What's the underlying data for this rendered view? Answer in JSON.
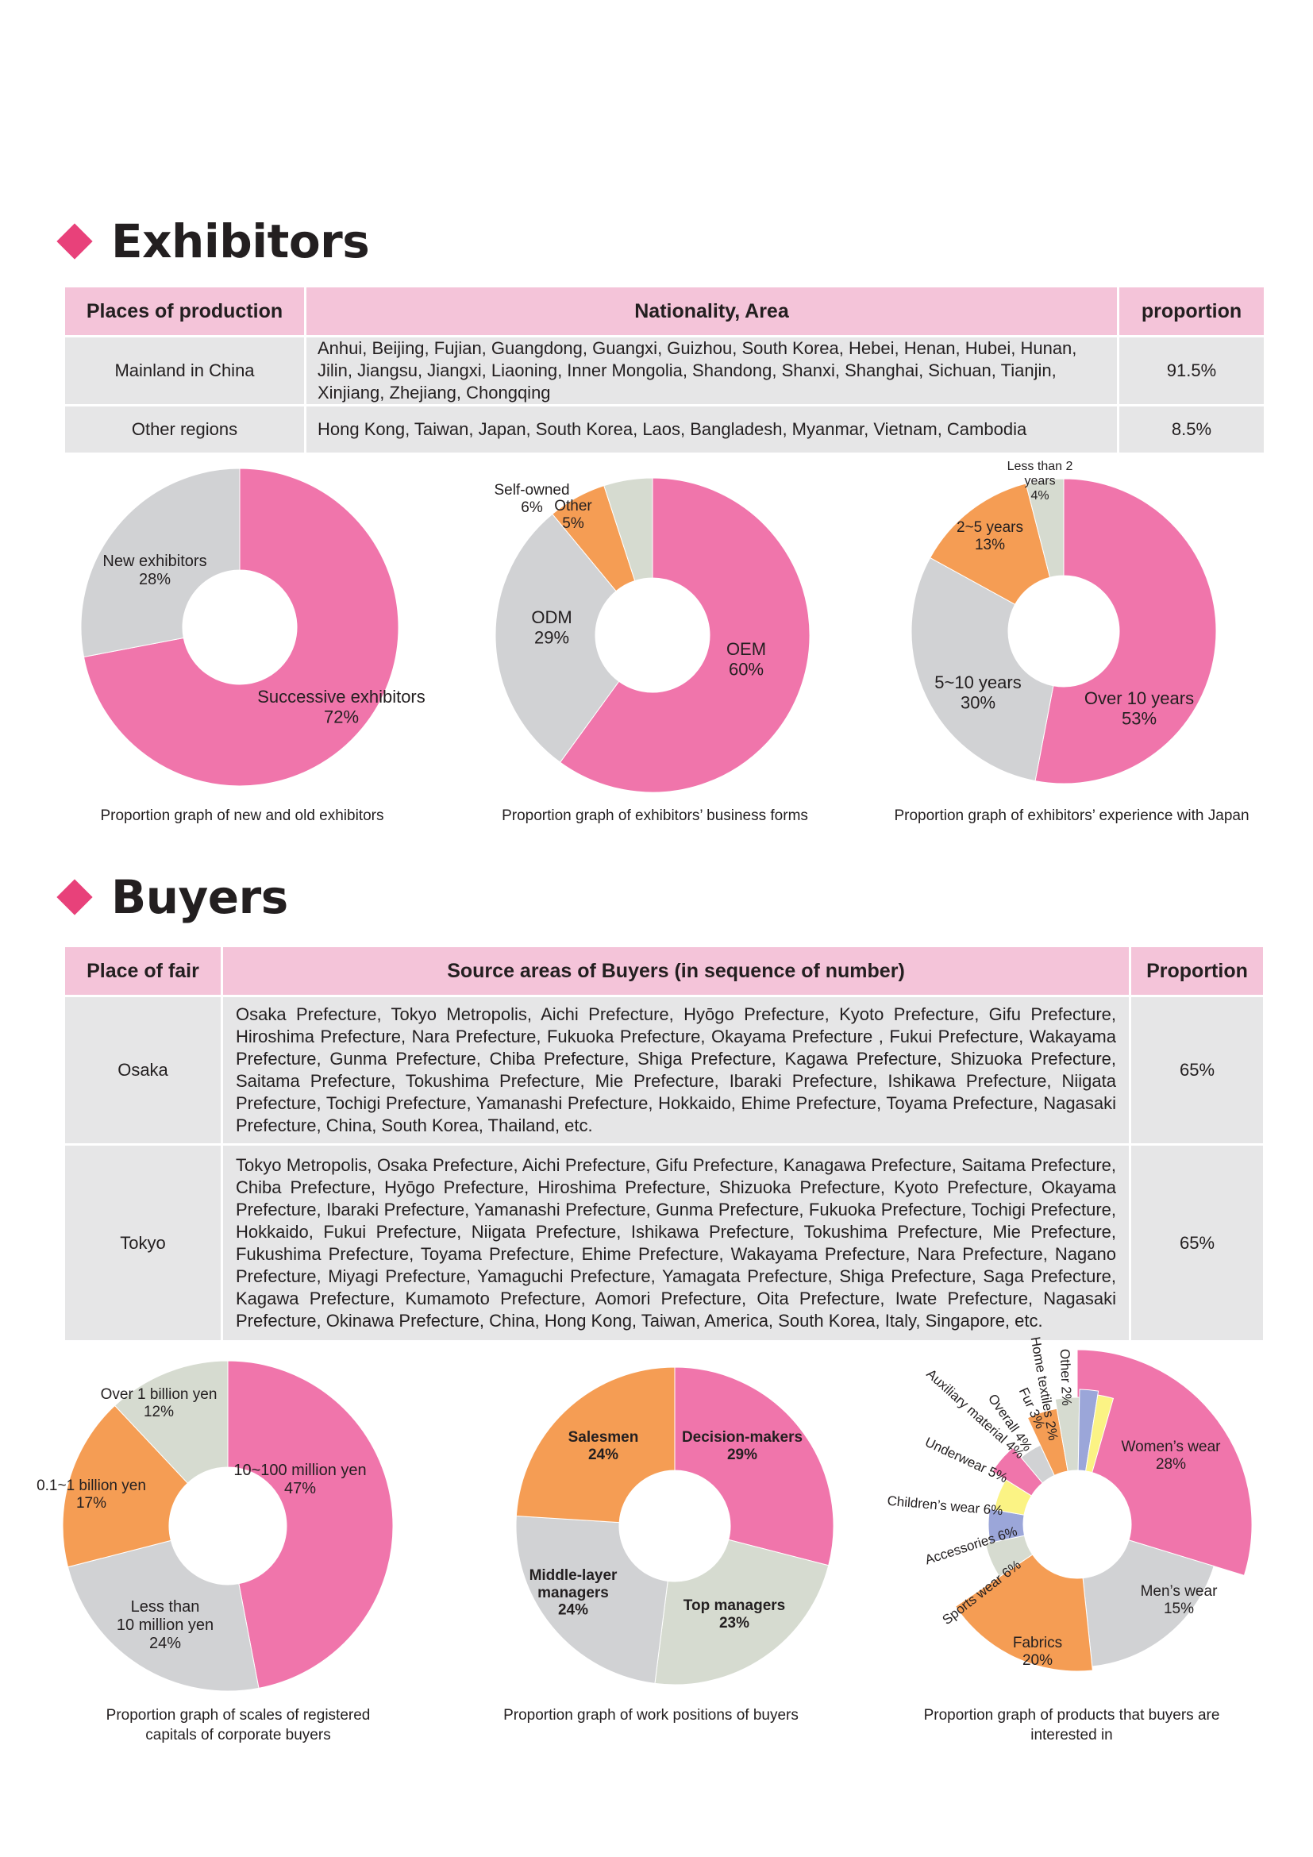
{
  "exhibitors": {
    "title": "Exhibitors",
    "table": {
      "headers": [
        "Places of production",
        "Nationality, Area",
        "proportion"
      ],
      "rows": [
        {
          "place": "Mainland in China",
          "areas": "Anhui, Beijing, Fujian, Guangdong, Guangxi, Guizhou, South Korea, Hebei, Henan, Hubei, Hunan, Jilin, Jiangsu, Jiangxi, Liaoning, Inner Mongolia, Shandong, Shanxi, Shanghai, Sichuan, Tianjin, Xinjiang, Zhejiang, Chongqing",
          "proportion": "91.5%"
        },
        {
          "place": "Other regions",
          "areas": "Hong Kong, Taiwan, Japan, South Korea, Laos, Bangladesh, Myanmar, Vietnam, Cambodia",
          "proportion": "8.5%"
        }
      ]
    }
  },
  "buyers": {
    "title": "Buyers",
    "table": {
      "headers": [
        "Place of fair",
        "Source areas of Buyers (in sequence of number)",
        "Proportion"
      ],
      "rows": [
        {
          "place": "Osaka",
          "areas": "Osaka Prefecture, Tokyo Metropolis, Aichi Prefecture, Hyōgo Prefecture, Kyoto Prefecture, Gifu Prefecture, Hiroshima Prefecture, Nara Prefecture, Fukuoka Prefecture, Okayama Prefecture , Fukui Prefecture, Wakayama Prefecture, Gunma Prefecture, Chiba Prefecture, Shiga Prefecture, Kagawa Prefecture, Shizuoka Prefecture, Saitama Prefecture, Tokushima Prefecture, Mie Prefecture, Ibaraki Prefecture, Ishikawa Prefecture, Niigata Prefecture, Tochigi Prefecture, Yamanashi Prefecture, Hokkaido, Ehime Prefecture, Toyama Prefecture, Nagasaki Prefecture, China, South Korea, Thailand, etc.",
          "proportion": "65%"
        },
        {
          "place": "Tokyo",
          "areas": "Tokyo Metropolis, Osaka Prefecture, Aichi Prefecture, Gifu Prefecture, Kanagawa Prefecture, Saitama Prefecture, Chiba Prefecture, Hyōgo Prefecture, Hiroshima Prefecture, Shizuoka Prefecture, Kyoto Prefecture, Okayama Prefecture, Ibaraki Prefecture, Yamanashi Prefecture, Gunma Prefecture, Fukuoka Prefecture, Tochigi Prefecture, Hokkaido, Fukui Prefecture, Niigata Prefecture, Ishikawa Prefecture, Tokushima Prefecture, Mie Prefecture, Fukushima Prefecture, Toyama Prefecture, Ehime Prefecture, Wakayama Prefecture, Nara Prefecture, Nagano Prefecture, Miyagi Prefecture, Yamaguchi Prefecture, Yamagata Prefecture, Shiga Prefecture, Saga Prefecture, Kagawa Prefecture, Kumamoto Prefecture, Aomori Prefecture, Oita Prefecture, Iwate Prefecture, Nagasaki Prefecture, Okinawa Prefecture, China, Hong Kong, Taiwan, America, South Korea, Italy, Singapore, etc.",
          "proportion": "65%"
        }
      ]
    }
  },
  "chart_data": [
    {
      "type": "pie",
      "donut": true,
      "title": "Proportion graph of new and old exhibitors",
      "slices": [
        {
          "label": "Successive exhibitors",
          "value": 72,
          "color": "#f075ab"
        },
        {
          "label": "New exhibitors",
          "value": 28,
          "color": "#d1d2d4"
        }
      ]
    },
    {
      "type": "pie",
      "donut": true,
      "title": "Proportion graph of exhibitors’ business forms",
      "slices": [
        {
          "label": "OEM",
          "value": 60,
          "color": "#f075ab"
        },
        {
          "label": "ODM",
          "value": 29,
          "color": "#d1d2d4"
        },
        {
          "label": "Self-owned",
          "value": 6,
          "color": "#f59d54"
        },
        {
          "label": "Other",
          "value": 5,
          "color": "#d6dbd0"
        }
      ]
    },
    {
      "type": "pie",
      "donut": true,
      "title": "Proportion graph of exhibitors’ experience with Japan",
      "slices": [
        {
          "label": "Over 10 years",
          "value": 53,
          "color": "#f075ab"
        },
        {
          "label": "5~10 years",
          "value": 30,
          "color": "#d1d2d4"
        },
        {
          "label": "2~5 years",
          "value": 13,
          "color": "#f59d54"
        },
        {
          "label": "Less than 2 years",
          "value": 4,
          "color": "#d6dbd0"
        }
      ]
    },
    {
      "type": "pie",
      "donut": true,
      "title": "Proportion graph of scales of registered capitals of corporate buyers",
      "slices": [
        {
          "label": "10~100 million yen",
          "value": 47,
          "color": "#f075ab"
        },
        {
          "label": "Less than 10 million yen",
          "value": 24,
          "color": "#d1d2d4"
        },
        {
          "label": "0.1~1 billion yen",
          "value": 17,
          "color": "#f59d54"
        },
        {
          "label": "Over 1 billion yen",
          "value": 12,
          "color": "#d6dbd0"
        }
      ]
    },
    {
      "type": "pie",
      "donut": true,
      "title": "Proportion graph of work positions of buyers",
      "slices": [
        {
          "label": "Decision-makers",
          "value": 29,
          "color": "#f075ab"
        },
        {
          "label": "Top managers",
          "value": 23,
          "color": "#d6dbd0"
        },
        {
          "label": "Middle-layer managers",
          "value": 24,
          "color": "#d1d2d4"
        },
        {
          "label": "Salesmen",
          "value": 24,
          "color": "#f59d54"
        }
      ]
    },
    {
      "type": "pie",
      "donut": true,
      "title": "Proportion graph of products that buyers are interested in",
      "slices": [
        {
          "label": "Women’s wear",
          "value": 28,
          "color": "#f075ab"
        },
        {
          "label": "Men’s wear",
          "value": 15,
          "color": "#d1d2d4"
        },
        {
          "label": "Fabrics",
          "value": 20,
          "color": "#f59d54"
        },
        {
          "label": "Sports wear",
          "value": 6,
          "color": "#d6dbd0"
        },
        {
          "label": "Accessories",
          "value": 6,
          "color": "#9ba6d9"
        },
        {
          "label": "Children’s wear",
          "value": 6,
          "color": "#fbf384"
        },
        {
          "label": "Underwear",
          "value": 5,
          "color": "#f075ab"
        },
        {
          "label": "Auxiliary material",
          "value": 4,
          "color": "#d1d2d4"
        },
        {
          "label": "Overall",
          "value": 4,
          "color": "#f59d54"
        },
        {
          "label": "Fur",
          "value": 3,
          "color": "#d6dbd0"
        },
        {
          "label": "Home textiles",
          "value": 2,
          "color": "#9ba6d9"
        },
        {
          "label": "Other",
          "value": 2,
          "color": "#fbf384"
        }
      ]
    }
  ],
  "chart_labels": [
    [
      {
        "lines": [
          "Successive exhibitors",
          "72%"
        ]
      },
      {
        "lines": [
          "New exhibitors",
          "28%"
        ]
      }
    ],
    [
      {
        "lines": [
          "OEM",
          "60%"
        ]
      },
      {
        "lines": [
          "ODM",
          "29%"
        ]
      },
      {
        "lines": [
          "Self-owned",
          "6%"
        ]
      },
      {
        "lines": [
          "Other",
          "5%"
        ]
      }
    ],
    [
      {
        "lines": [
          "Over 10 years",
          "53%"
        ]
      },
      {
        "lines": [
          "5~10 years",
          "30%"
        ]
      },
      {
        "lines": [
          "2~5 years",
          "13%"
        ]
      },
      {
        "lines": [
          "Less than 2",
          "years",
          "4%"
        ]
      }
    ],
    [
      {
        "lines": [
          "10~100 million yen",
          "47%"
        ]
      },
      {
        "lines": [
          "Less than",
          "10 million yen",
          "24%"
        ]
      },
      {
        "lines": [
          "0.1~1 billion yen",
          "17%"
        ]
      },
      {
        "lines": [
          "Over 1 billion yen",
          "12%"
        ]
      }
    ],
    [
      {
        "lines": [
          "Decision-makers",
          "29%"
        ]
      },
      {
        "lines": [
          "Top managers",
          "23%"
        ]
      },
      {
        "lines": [
          "Middle-layer",
          "managers",
          "24%"
        ]
      },
      {
        "lines": [
          "Salesmen",
          "24%"
        ]
      }
    ],
    [
      {
        "lines": [
          "Women’s wear",
          "28%"
        ]
      },
      {
        "lines": [
          "Men’s wear",
          "15%"
        ]
      },
      {
        "lines": [
          "Fabrics",
          "20%"
        ]
      },
      {
        "lines": [
          "Sports wear 6%"
        ]
      },
      {
        "lines": [
          "Accessories 6%"
        ]
      },
      {
        "lines": [
          "Children’s wear 6%"
        ]
      },
      {
        "lines": [
          "Underwear 5%"
        ]
      },
      {
        "lines": [
          "Auxiliary material 4%"
        ]
      },
      {
        "lines": [
          "Overall 4%"
        ]
      },
      {
        "lines": [
          "Fur 3%"
        ]
      },
      {
        "lines": [
          "Home textiles 2%"
        ]
      },
      {
        "lines": [
          "Other 2%"
        ]
      }
    ]
  ],
  "captions": [
    "Proportion graph of new and old exhibitors",
    "Proportion graph of exhibitors’ business forms",
    "Proportion graph of exhibitors’ experience with Japan",
    "Proportion graph of scales of registered capitals of corporate buyers",
    "Proportion graph of work positions of buyers",
    "Proportion graph of products that buyers are interested in"
  ]
}
